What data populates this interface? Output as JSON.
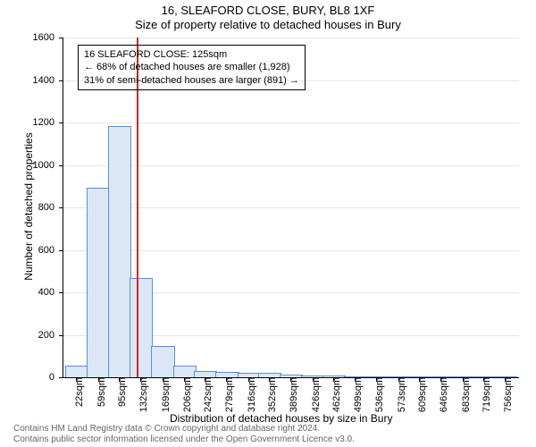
{
  "title_main": "16, SLEAFORD CLOSE, BURY, BL8 1XF",
  "title_sub": "Size of property relative to detached houses in Bury",
  "chart": {
    "type": "histogram",
    "ylabel": "Number of detached properties",
    "xlabel": "Distribution of detached houses by size in Bury",
    "ylim": [
      0,
      1600
    ],
    "ytick_step": 200,
    "yticks": [
      0,
      200,
      400,
      600,
      800,
      1000,
      1200,
      1400,
      1600
    ],
    "xlim_sqm": [
      0,
      780
    ],
    "xticks": [
      {
        "pos": 22,
        "label": "22sqm"
      },
      {
        "pos": 59,
        "label": "59sqm"
      },
      {
        "pos": 95,
        "label": "95sqm"
      },
      {
        "pos": 132,
        "label": "132sqm"
      },
      {
        "pos": 169,
        "label": "169sqm"
      },
      {
        "pos": 206,
        "label": "206sqm"
      },
      {
        "pos": 242,
        "label": "242sqm"
      },
      {
        "pos": 279,
        "label": "279sqm"
      },
      {
        "pos": 316,
        "label": "316sqm"
      },
      {
        "pos": 352,
        "label": "352sqm"
      },
      {
        "pos": 389,
        "label": "389sqm"
      },
      {
        "pos": 426,
        "label": "426sqm"
      },
      {
        "pos": 462,
        "label": "462sqm"
      },
      {
        "pos": 499,
        "label": "499sqm"
      },
      {
        "pos": 536,
        "label": "536sqm"
      },
      {
        "pos": 573,
        "label": "573sqm"
      },
      {
        "pos": 609,
        "label": "609sqm"
      },
      {
        "pos": 646,
        "label": "646sqm"
      },
      {
        "pos": 683,
        "label": "683sqm"
      },
      {
        "pos": 719,
        "label": "719sqm"
      },
      {
        "pos": 756,
        "label": "756sqm"
      }
    ],
    "bar_width_sqm": 37,
    "bars": [
      {
        "x": 22,
        "y": 50
      },
      {
        "x": 59,
        "y": 890
      },
      {
        "x": 95,
        "y": 1180
      },
      {
        "x": 132,
        "y": 465
      },
      {
        "x": 169,
        "y": 145
      },
      {
        "x": 206,
        "y": 50
      },
      {
        "x": 242,
        "y": 25
      },
      {
        "x": 279,
        "y": 20
      },
      {
        "x": 316,
        "y": 15
      },
      {
        "x": 352,
        "y": 15
      },
      {
        "x": 389,
        "y": 8
      },
      {
        "x": 426,
        "y": 4
      },
      {
        "x": 462,
        "y": 3
      },
      {
        "x": 499,
        "y": 2
      },
      {
        "x": 536,
        "y": 2
      },
      {
        "x": 573,
        "y": 1
      },
      {
        "x": 609,
        "y": 1
      },
      {
        "x": 646,
        "y": 1
      },
      {
        "x": 683,
        "y": 1
      },
      {
        "x": 719,
        "y": 1
      },
      {
        "x": 756,
        "y": 1
      }
    ],
    "bar_fill": "#dbe7f7",
    "bar_stroke": "#5b8fd6",
    "grid_color": "#e6e6e6",
    "refline_x": 125,
    "refline_color": "#d62728",
    "annot": {
      "line1": "16 SLEAFORD CLOSE: 125sqm",
      "line2": "← 68% of detached houses are smaller (1,928)",
      "line3": "31% of semi-detached houses are larger (891) →"
    },
    "title_fontsize": 13,
    "label_fontsize": 12,
    "tick_fontsize": 11
  },
  "footer": {
    "line1": "Contains HM Land Registry data © Crown copyright and database right 2024.",
    "line2": "Contains public sector information licensed under the Open Government Licence v3.0.",
    "color": "#666666"
  }
}
